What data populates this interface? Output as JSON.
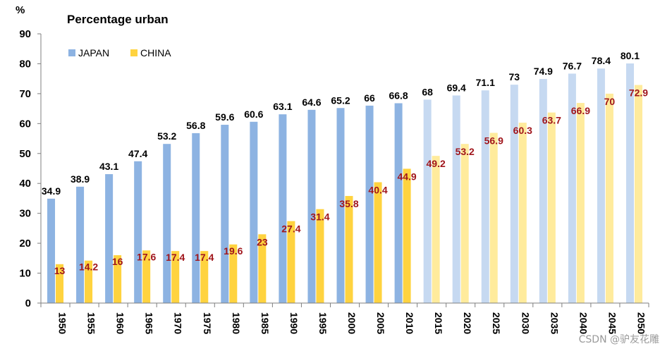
{
  "chart_data": {
    "type": "bar",
    "title": "Percentage urban",
    "ylabel": "%",
    "xlabel": "",
    "ylim": [
      0,
      90
    ],
    "yticks": [
      0,
      10,
      20,
      30,
      40,
      50,
      60,
      70,
      80,
      90
    ],
    "grid": false,
    "legend": "top-left",
    "categories": [
      "1950",
      "1955",
      "1960",
      "1965",
      "1970",
      "1975",
      "1980",
      "1985",
      "1990",
      "1995",
      "2000",
      "2005",
      "2010",
      "2015",
      "2020",
      "2025",
      "2030",
      "2035",
      "2040",
      "2045",
      "2050"
    ],
    "series": [
      {
        "name": "JAPAN",
        "color": "#8db3e2",
        "projected_color": "#c6d9f1",
        "values": [
          34.9,
          38.9,
          43.1,
          47.4,
          53.2,
          56.8,
          59.6,
          60.6,
          63.1,
          64.6,
          65.2,
          66,
          66.8,
          68,
          69.4,
          71.1,
          73,
          74.9,
          76.7,
          78.4,
          80.1
        ],
        "labels": [
          "34.9",
          "38.9",
          "43.1",
          "47.4",
          "53.2",
          "56.8",
          "59.6",
          "60.6",
          "63.1",
          "64.6",
          "65.2",
          "66",
          "66.8",
          "68",
          "69.4",
          "71.1",
          "73",
          "74.9",
          "76.7",
          "78.4",
          "80.1"
        ]
      },
      {
        "name": "CHINA",
        "color": "#ffd33f",
        "projected_color": "#ffeb9c",
        "values": [
          13,
          14.2,
          16,
          17.6,
          17.4,
          17.4,
          19.6,
          23,
          27.4,
          31.4,
          35.8,
          40.4,
          44.9,
          49.2,
          53.2,
          56.9,
          60.3,
          63.7,
          66.9,
          70,
          72.9
        ],
        "labels": [
          "13",
          "14.2",
          "16",
          "17.6",
          "17.4",
          "17.4",
          "19.6",
          "23",
          "27.4",
          "31.4",
          "35.8",
          "40.4",
          "44.9",
          "49.2",
          "53.2",
          "56.9",
          "60.3",
          "63.7",
          "66.9",
          "70",
          "72.9"
        ]
      }
    ],
    "projected_from_index": 13
  },
  "watermark": "CSDN @驴友花雕"
}
